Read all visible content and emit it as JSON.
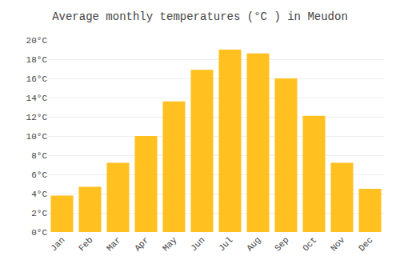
{
  "chart_data": {
    "type": "bar",
    "title": "Average monthly temperatures (°C ) in Meudon",
    "categories": [
      "Jan",
      "Feb",
      "Mar",
      "Apr",
      "May",
      "Jun",
      "Jul",
      "Aug",
      "Sep",
      "Oct",
      "Nov",
      "Dec"
    ],
    "values": [
      3.8,
      4.7,
      7.2,
      10.0,
      13.6,
      16.9,
      19.0,
      18.6,
      16.0,
      12.1,
      7.2,
      4.5
    ],
    "color": "#FFC020",
    "ylim": [
      0,
      20
    ],
    "yticks": [
      {
        "value": 0,
        "label": "0°C"
      },
      {
        "value": 2,
        "label": "2°C"
      },
      {
        "value": 4,
        "label": "4°C"
      },
      {
        "value": 6,
        "label": "6°C"
      },
      {
        "value": 8,
        "label": "8°C"
      },
      {
        "value": 10,
        "label": "10°C"
      },
      {
        "value": 12,
        "label": "12°C"
      },
      {
        "value": 14,
        "label": "14°C"
      },
      {
        "value": 16,
        "label": "16°C"
      },
      {
        "value": 18,
        "label": "18°C"
      },
      {
        "value": 20,
        "label": "20°C"
      }
    ],
    "grid": true
  }
}
